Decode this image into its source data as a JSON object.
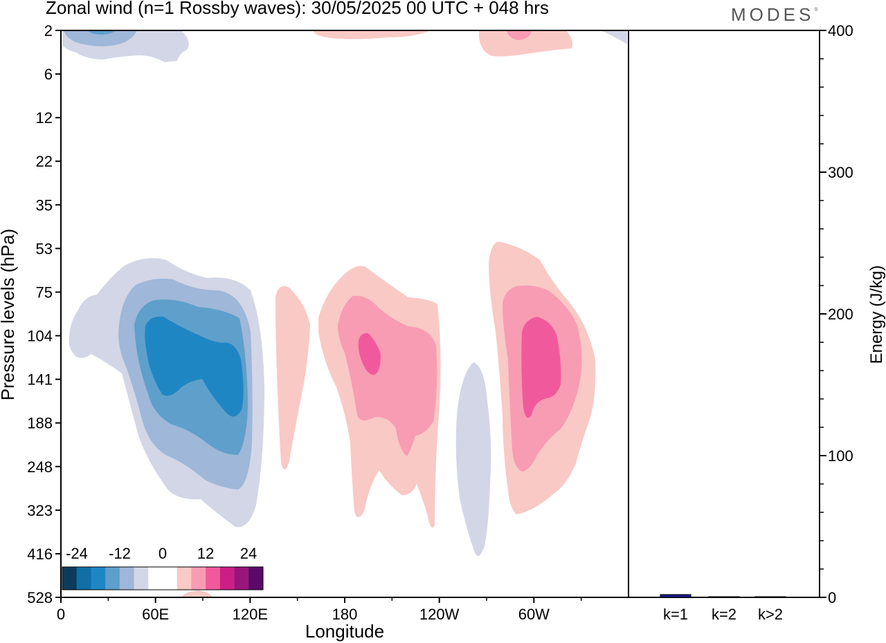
{
  "header": {
    "title": "Zonal wind (n=1 Rossby waves):  30/05/2025  00 UTC  + 048 hrs",
    "brand": "MODES"
  },
  "colors": {
    "neg4": "#0c3b5c",
    "neg3": "#0f6fa6",
    "neg2": "#1f86c4",
    "neg1": "#5f9fcb",
    "neg0b": "#9fb7d8",
    "neg0a": "#d3d6e6",
    "zero": "#ffffff",
    "pos0a": "#f9c9c5",
    "pos0b": "#f89cb3",
    "pos1": "#f05a9d",
    "pos2": "#cc1f86",
    "pos3": "#99157a",
    "pos4": "#5b0a6a",
    "energy_bar": "#1a1a8c"
  },
  "chart_data": [
    {
      "type": "heatmap",
      "title": "Zonal wind (n=1 Rossby waves):  30/05/2025  00 UTC  + 048 hrs",
      "xlabel": "Longitude",
      "ylabel": "Pressure levels (hPa)",
      "x_ticks": [
        "0",
        "60E",
        "120E",
        "180",
        "120W",
        "60W"
      ],
      "x_tick_degrees": [
        0,
        60,
        120,
        180,
        240,
        300
      ],
      "x_range_degrees": [
        0,
        360
      ],
      "y_ticks": [
        "2",
        "6",
        "12",
        "22",
        "35",
        "53",
        "75",
        "104",
        "141",
        "188",
        "248",
        "323",
        "416",
        "528"
      ],
      "colorbar": {
        "tick_labels": [
          "-24",
          "-12",
          "0",
          "12",
          "24"
        ],
        "levels": [
          -28,
          -24,
          -20,
          -16,
          -12,
          -8,
          -4,
          4,
          8,
          12,
          16,
          20,
          24,
          28
        ]
      },
      "features": [
        {
          "sign": "negative",
          "longitude": "30E",
          "pressure": "2",
          "min": -12
        },
        {
          "sign": "negative",
          "longitude": "40E-120E",
          "pressure": "53-416",
          "min": -16
        },
        {
          "sign": "positive",
          "longitude": "145E",
          "pressure": "75-248",
          "max": 4
        },
        {
          "sign": "positive",
          "longitude": "180-160W",
          "pressure": "53-323",
          "max": 12
        },
        {
          "sign": "negative",
          "longitude": "140W",
          "pressure": "141-416",
          "min": -4
        },
        {
          "sign": "positive",
          "longitude": "60W",
          "pressure": "53-323",
          "max": 12
        },
        {
          "sign": "positive",
          "longitude": "60W",
          "pressure": "2",
          "max": 8
        }
      ]
    },
    {
      "type": "bar",
      "ylabel": "Energy (J/kg)",
      "categories": [
        "k=1",
        "k=2",
        "k>2"
      ],
      "values": [
        2,
        0.5,
        0.5
      ],
      "ylim": [
        0,
        400
      ],
      "y_ticks": [
        "0",
        "100",
        "200",
        "300",
        "400"
      ]
    }
  ]
}
